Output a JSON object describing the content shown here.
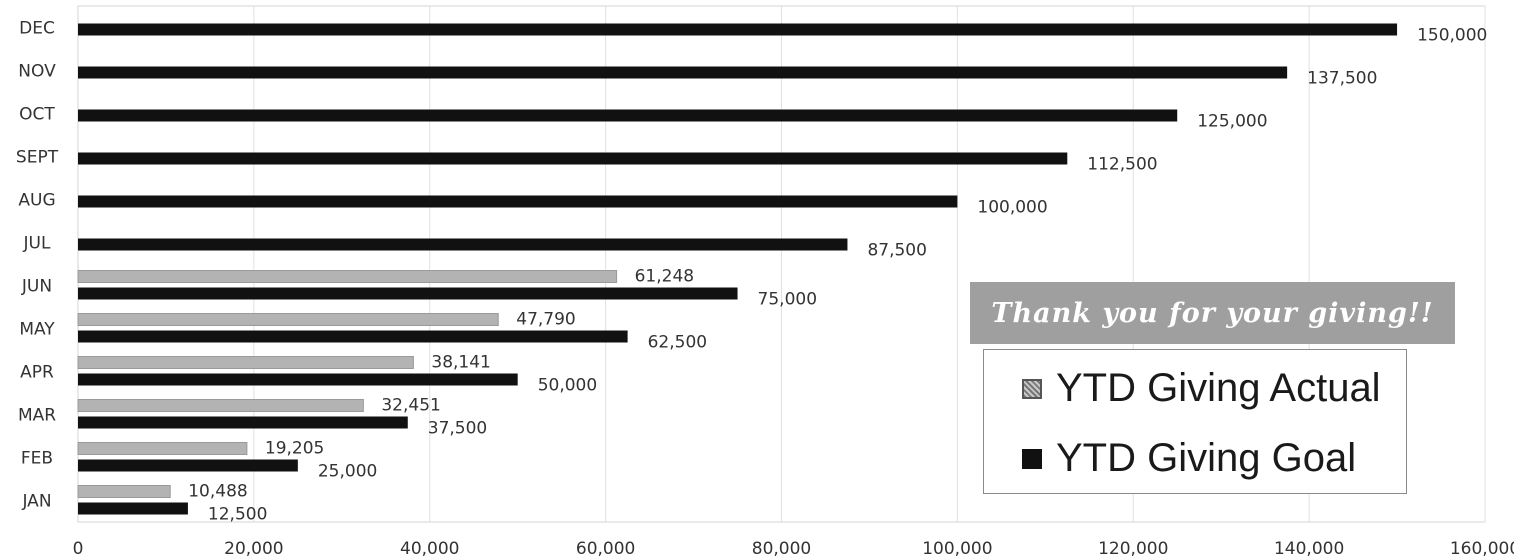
{
  "chart_data": {
    "type": "bar",
    "orientation": "horizontal",
    "categories": [
      "JAN",
      "FEB",
      "MAR",
      "APR",
      "MAY",
      "JUN",
      "JUL",
      "AUG",
      "SEPT",
      "OCT",
      "NOV",
      "DEC"
    ],
    "series": [
      {
        "name": "YTD Giving Actual",
        "color": "#b3b3b3",
        "values": [
          10488,
          19205,
          32451,
          38141,
          47790,
          61248,
          null,
          null,
          null,
          null,
          null,
          null
        ],
        "labels": [
          "10,488",
          "19,205",
          "32,451",
          "38,141",
          "47,790",
          "61,248",
          null,
          null,
          null,
          null,
          null,
          null
        ]
      },
      {
        "name": "YTD Giving Goal",
        "color": "#111111",
        "values": [
          12500,
          25000,
          37500,
          50000,
          62500,
          75000,
          87500,
          100000,
          112500,
          125000,
          137500,
          150000
        ],
        "labels": [
          "12,500",
          "25,000",
          "37,500",
          "50,000",
          "62,500",
          "75,000",
          "87,500",
          "100,000",
          "112,500",
          "125,000",
          "137,500",
          "150,000"
        ]
      }
    ],
    "xlim": [
      0,
      160000
    ],
    "xticks": [
      0,
      20000,
      40000,
      60000,
      80000,
      100000,
      120000,
      140000,
      160000
    ],
    "xtick_labels": [
      "0",
      "20,000",
      "40,000",
      "60,000",
      "80,000",
      "100,000",
      "120,000",
      "140,000",
      "160,000"
    ],
    "grid": true,
    "legend_position": "bottom-right"
  },
  "banner": {
    "text": "Thank you for your giving!!"
  },
  "legend": {
    "items": [
      {
        "label": "YTD Giving Actual"
      },
      {
        "label": "YTD Giving Goal"
      }
    ]
  }
}
